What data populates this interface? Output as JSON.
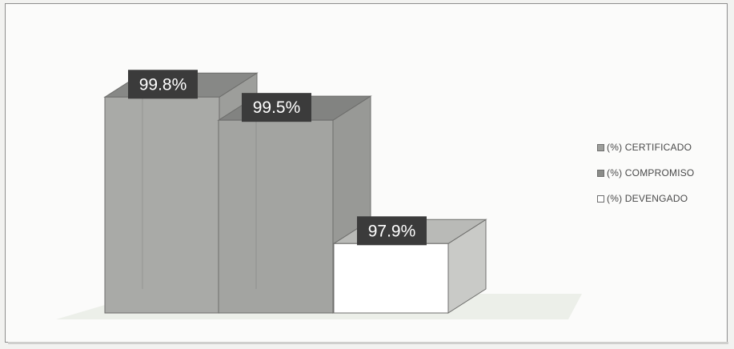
{
  "chart_data": {
    "type": "bar",
    "style": "3d",
    "categories": [
      "(%) CERTIFICADO",
      "(%) COMPROMISO",
      "(%) DEVENGADO"
    ],
    "values": [
      99.8,
      99.5,
      97.9
    ],
    "data_labels": [
      "99.8%",
      "99.5%",
      "97.9%"
    ],
    "legend": {
      "placement": "right",
      "items": [
        "(%) CERTIFICADO",
        "(%) COMPROMISO",
        "(%) DEVENGADO"
      ]
    },
    "colors": {
      "certificado": "#a9aaa7",
      "compromiso": "#a3a4a1",
      "devengado": "#ffffff",
      "label_bg": "#3b3b3b",
      "label_text": "#ffffff"
    },
    "title": "",
    "xlabel": "",
    "ylabel": "",
    "grid": false,
    "ylim": [
      97.0,
      100.0
    ]
  }
}
